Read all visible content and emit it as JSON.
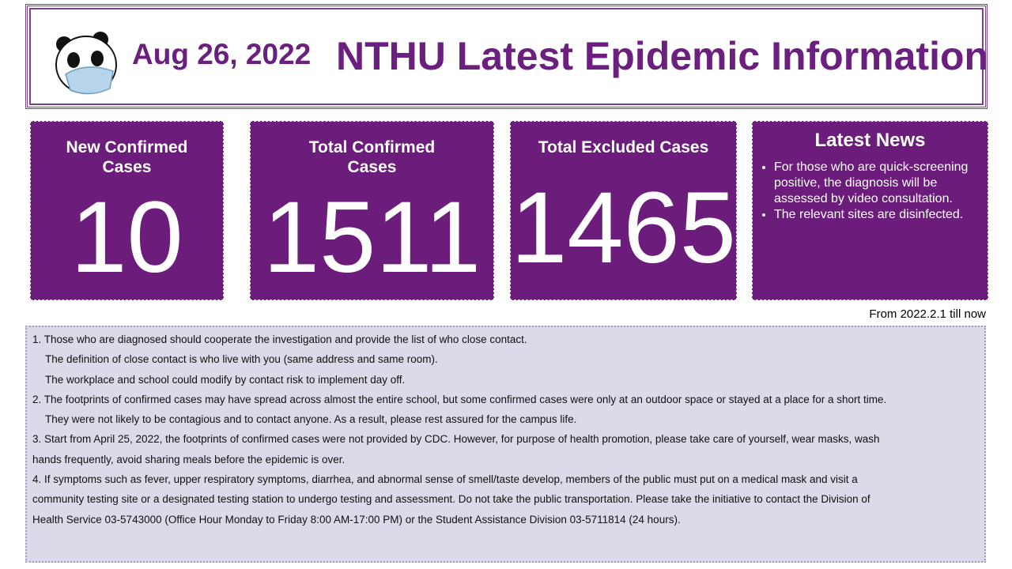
{
  "header": {
    "date": "Aug 26, 2022",
    "title": "NTHU Latest Epidemic Information"
  },
  "cards": [
    {
      "label": "New Confirmed Cases",
      "value": 10
    },
    {
      "label": "Total Confirmed Cases",
      "value": 1511
    },
    {
      "label": "Total Excluded Cases",
      "value": 1465
    }
  ],
  "news": {
    "title": "Latest News",
    "items": [
      "For those who are quick-screening positive, the diagnosis will be assessed by video consultation.",
      "The relevant sites are disinfected."
    ]
  },
  "period": "From 2022.2.1 till now",
  "notice": {
    "lines": [
      "1. Those who are diagnosed should cooperate the investigation and provide the list of who close contact.",
      "The definition of close contact is who live with you (same address and same room).",
      "The workplace and school could modify by contact risk to implement day off.",
      "2. The footprints of confirmed cases may have spread across almost the entire school, but some confirmed cases were only at an outdoor space or stayed at a place for a short time.",
      "They were not likely to be contagious and to contact anyone. As a result, please rest assured for the campus life.",
      "3. Start from April 25, 2022, the footprints of confirmed cases were not provided by CDC. However, for purpose of health promotion, please take care of yourself, wear masks, wash",
      "hands frequently, avoid sharing meals before the epidemic is over.",
      "4.  If symptoms such as fever, upper respiratory symptoms, diarrhea, and abnormal sense of smell/taste develop, members of the public must put on a medical mask and visit a",
      "community testing site or a designated testing station to undergo testing and assessment. Do not take the public transportation. Please take the initiative to contact the Division of",
      "Health Service 03-5743000 (Office Hour Monday to Friday 8:00 AM-17:00 PM) or the Student Assistance Division 03-5711814 (24 hours)."
    ]
  }
}
